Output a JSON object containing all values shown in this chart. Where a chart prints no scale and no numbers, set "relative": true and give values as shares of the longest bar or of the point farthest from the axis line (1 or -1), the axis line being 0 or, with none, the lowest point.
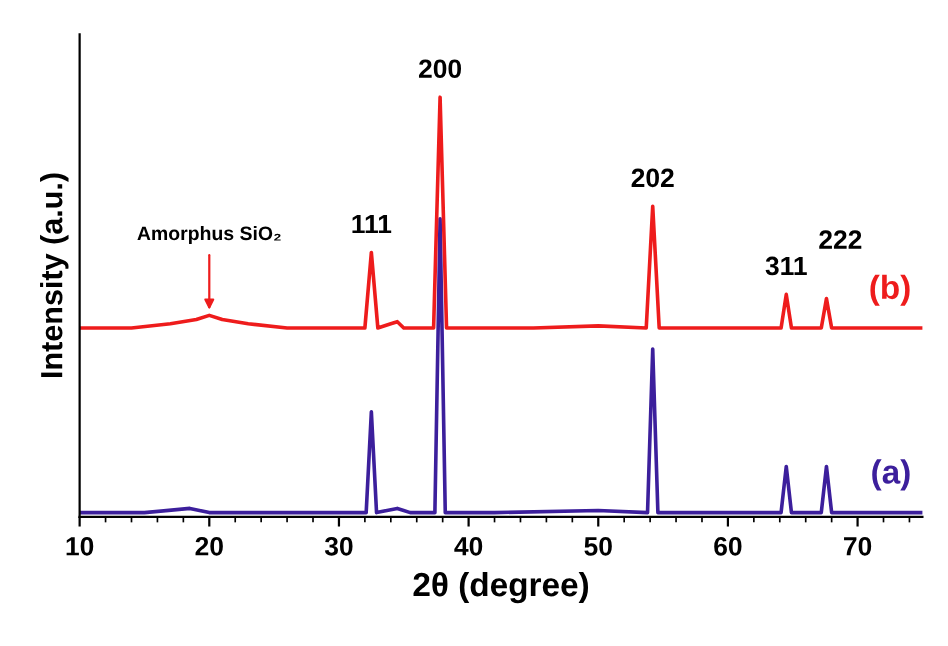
{
  "chart_data": {
    "type": "line",
    "relative": true,
    "xlabel": "2θ (degree)",
    "ylabel": "Intensity (a.u.)",
    "xlim": [
      10,
      75
    ],
    "xticks": [
      10,
      20,
      30,
      40,
      50,
      60,
      70
    ],
    "legend": false,
    "grid": false,
    "marker": "none",
    "line_style": "solid",
    "tick_labels": "x",
    "series": [
      {
        "name": "(a)",
        "color": "#3c1f9c",
        "x": [
          10,
          15,
          18.5,
          20,
          25,
          30,
          32.1,
          32.5,
          32.9,
          34.5,
          35.5,
          37.4,
          37.8,
          38.2,
          42,
          50,
          53.8,
          54.2,
          54.6,
          60,
          64.1,
          64.5,
          64.9,
          67.2,
          67.6,
          68,
          75
        ],
        "values": [
          0.01,
          0.01,
          0.02,
          0.01,
          0.01,
          0.01,
          0.01,
          0.25,
          0.01,
          0.02,
          0.01,
          0.01,
          0.71,
          0.01,
          0.01,
          0.015,
          0.01,
          0.4,
          0.01,
          0.01,
          0.01,
          0.12,
          0.01,
          0.01,
          0.12,
          0.01,
          0.01
        ]
      },
      {
        "name": "(b)",
        "color": "#ee1c1c",
        "x": [
          10,
          14,
          17,
          19,
          20,
          21,
          23,
          26,
          30,
          32,
          32.5,
          33,
          34,
          34.5,
          35,
          37.3,
          37.8,
          38.3,
          40,
          45,
          50,
          53.7,
          54.2,
          54.7,
          58,
          62,
          64.1,
          64.5,
          64.9,
          66,
          67.2,
          67.6,
          68,
          71,
          75
        ],
        "values": [
          0.45,
          0.45,
          0.46,
          0.47,
          0.48,
          0.47,
          0.46,
          0.45,
          0.45,
          0.45,
          0.63,
          0.45,
          0.46,
          0.465,
          0.45,
          0.45,
          1.0,
          0.45,
          0.45,
          0.45,
          0.455,
          0.45,
          0.74,
          0.45,
          0.45,
          0.45,
          0.45,
          0.53,
          0.45,
          0.45,
          0.45,
          0.52,
          0.45,
          0.45,
          0.45
        ]
      }
    ],
    "annotations": [
      {
        "text": "Amorphus SiO₂",
        "x": 20,
        "y": 0.48
      },
      {
        "text": "111",
        "x": 32.5,
        "y": 0.63
      },
      {
        "text": "200",
        "x": 37.8,
        "y": 1.0
      },
      {
        "text": "202",
        "x": 54.2,
        "y": 0.74
      },
      {
        "text": "311",
        "x": 64.5,
        "y": 0.53
      },
      {
        "text": "222",
        "x": 67.6,
        "y": 0.52
      }
    ]
  }
}
